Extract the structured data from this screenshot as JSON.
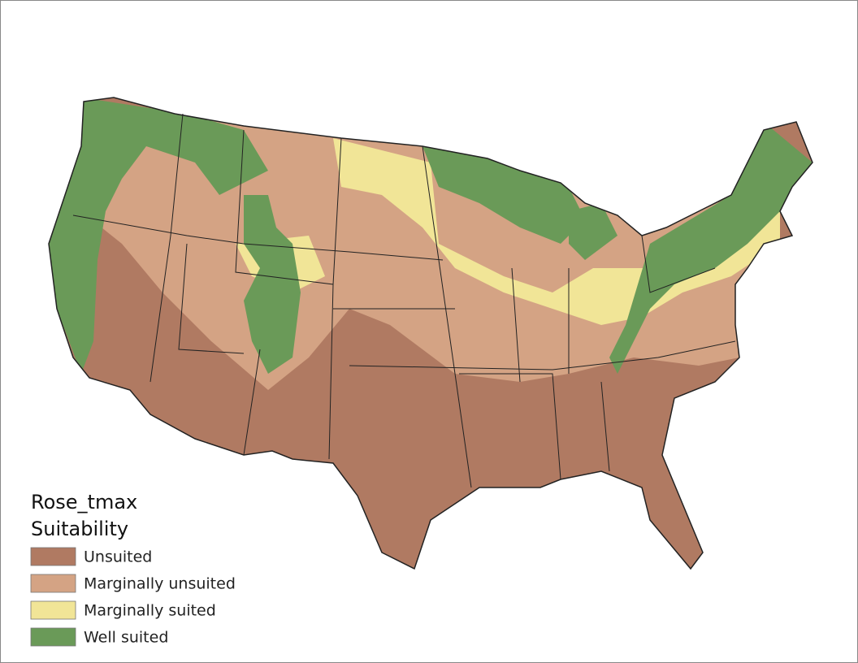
{
  "legend": {
    "title": [
      "Rose_tmax",
      "Suitability"
    ],
    "items": [
      {
        "label": "Unsuited",
        "color": "#b07a62"
      },
      {
        "label": "Marginally unsuited",
        "color": "#d4a384"
      },
      {
        "label": "Marginally suited",
        "color": "#f1e597"
      },
      {
        "label": "Well suited",
        "color": "#6a9a58"
      }
    ]
  }
}
